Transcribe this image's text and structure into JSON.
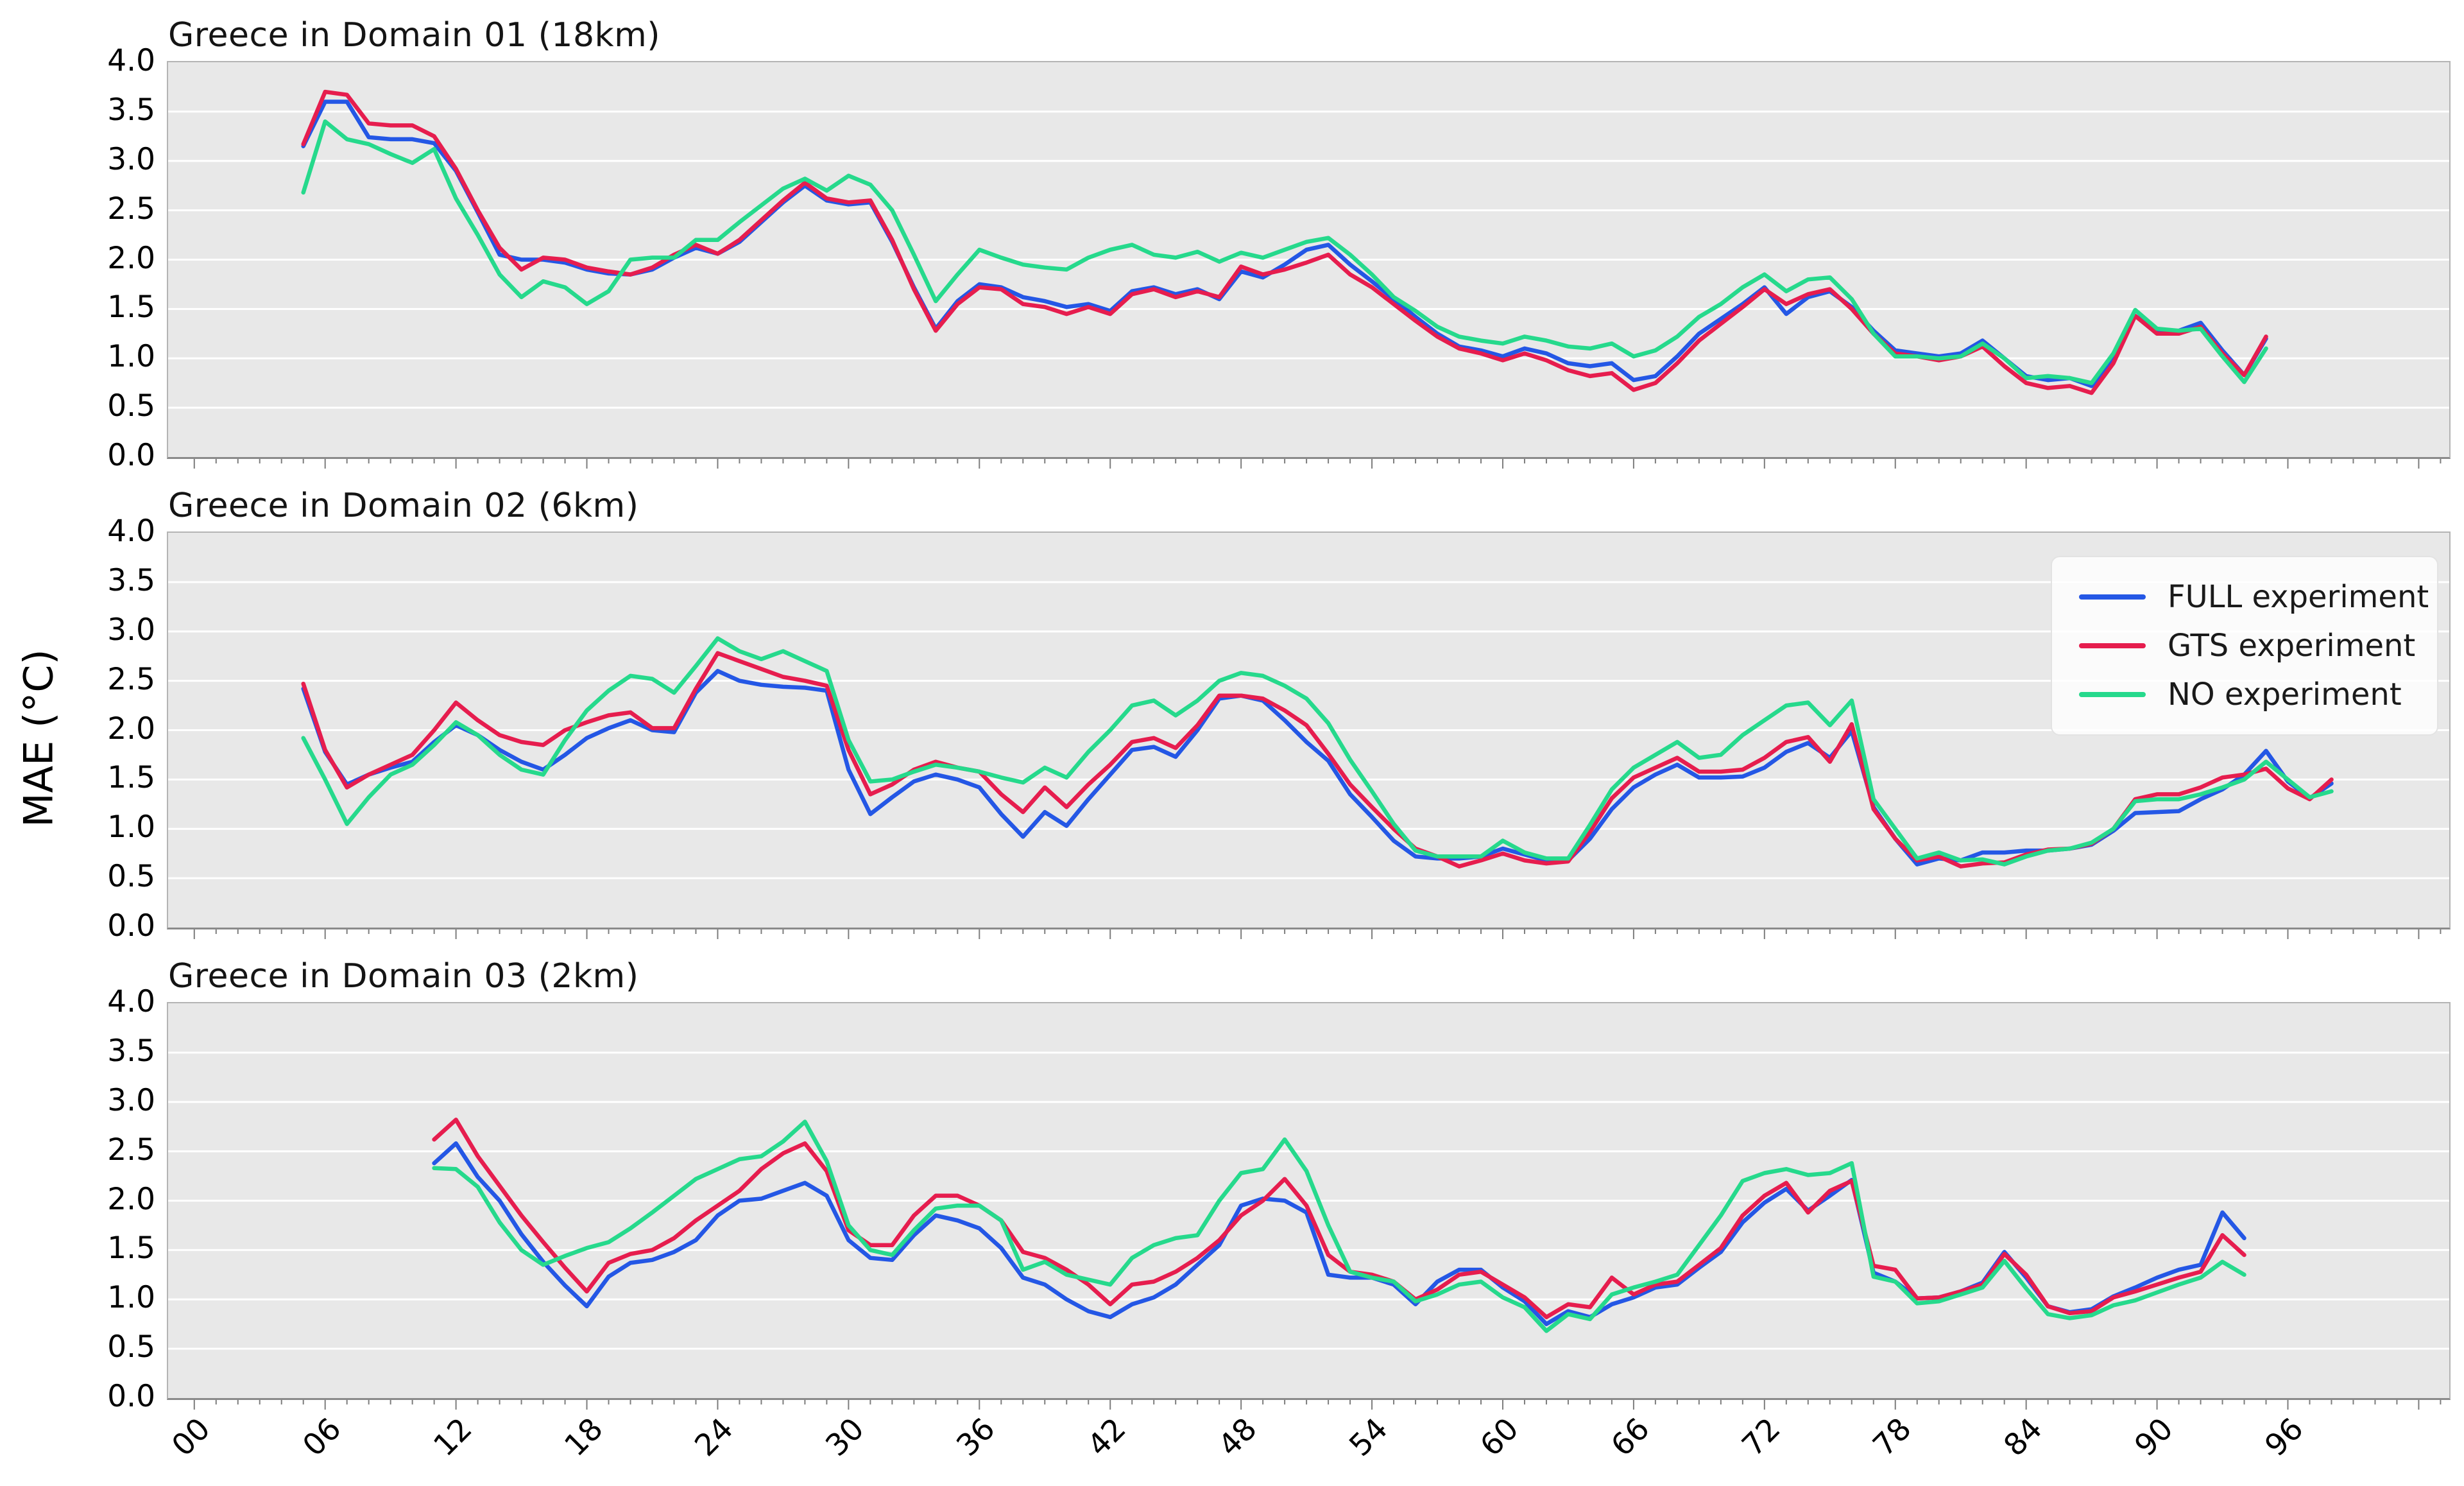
{
  "figure": {
    "ylabel": "MAE (°C)",
    "background": "#ffffff",
    "panel_background": "#e8e8e8",
    "gridline_color": "#ffffff"
  },
  "legend": {
    "entries": [
      {
        "label": "FULL experiment",
        "color": "#2457e5"
      },
      {
        "label": "GTS experiment",
        "color": "#e61d4e"
      },
      {
        "label": "NO experiment",
        "color": "#26d98c"
      }
    ]
  },
  "axes": {
    "ylim": [
      0,
      4
    ],
    "yticks": [
      "4.0",
      "3.5",
      "3.0",
      "2.5",
      "2.0",
      "1.5",
      "1.0",
      "0.5",
      "0.0"
    ],
    "xtick_labels": [
      "00",
      "06",
      "12",
      "18",
      "24",
      "30",
      "36",
      "42",
      "48",
      "54",
      "60",
      "66",
      "72",
      "78",
      "84",
      "90",
      "96"
    ],
    "xtick_hours": [
      0,
      6,
      12,
      18,
      24,
      30,
      36,
      42,
      48,
      54,
      60,
      66,
      72,
      78,
      84,
      90,
      96
    ],
    "xlim": [
      -1.2,
      103.4
    ]
  },
  "chart_data": [
    {
      "type": "line",
      "title": "Greece in Domain 01 (18km)",
      "xlabel": "",
      "ylabel": "MAE (°C)",
      "ylim": [
        0,
        4
      ],
      "grid": true,
      "start_hour": 5,
      "series": [
        {
          "name": "FULL experiment",
          "color": "#2457e5",
          "values": [
            3.15,
            3.6,
            3.6,
            3.24,
            3.22,
            3.22,
            3.18,
            2.9,
            2.48,
            2.05,
            2.0,
            2.0,
            1.97,
            1.9,
            1.86,
            1.85,
            1.9,
            2.02,
            2.12,
            2.06,
            2.18,
            2.38,
            2.58,
            2.75,
            2.6,
            2.56,
            2.58,
            2.18,
            1.72,
            1.3,
            1.58,
            1.75,
            1.72,
            1.62,
            1.58,
            1.52,
            1.55,
            1.48,
            1.68,
            1.72,
            1.65,
            1.7,
            1.6,
            1.88,
            1.82,
            1.95,
            2.1,
            2.15,
            1.95,
            1.78,
            1.6,
            1.42,
            1.25,
            1.12,
            1.08,
            1.02,
            1.1,
            1.05,
            0.95,
            0.92,
            0.95,
            0.78,
            0.82,
            1.02,
            1.25,
            1.4,
            1.55,
            1.72,
            1.45,
            1.62,
            1.68,
            1.52,
            1.28,
            1.08,
            1.05,
            1.02,
            1.05,
            1.18,
            1.0,
            0.82,
            0.78,
            0.8,
            0.72,
            1.0,
            1.43,
            1.28,
            1.28,
            1.36,
            1.08,
            0.83,
            1.2
          ]
        },
        {
          "name": "GTS experiment",
          "color": "#e61d4e",
          "values": [
            3.17,
            3.7,
            3.67,
            3.38,
            3.36,
            3.36,
            3.25,
            2.92,
            2.5,
            2.12,
            1.9,
            2.02,
            2.0,
            1.92,
            1.88,
            1.85,
            1.92,
            2.05,
            2.15,
            2.06,
            2.2,
            2.4,
            2.6,
            2.78,
            2.62,
            2.58,
            2.6,
            2.2,
            1.7,
            1.28,
            1.55,
            1.72,
            1.7,
            1.55,
            1.52,
            1.45,
            1.52,
            1.45,
            1.65,
            1.7,
            1.62,
            1.68,
            1.62,
            1.93,
            1.85,
            1.9,
            1.97,
            2.05,
            1.85,
            1.72,
            1.55,
            1.38,
            1.22,
            1.1,
            1.05,
            0.98,
            1.05,
            0.98,
            0.88,
            0.82,
            0.85,
            0.68,
            0.75,
            0.95,
            1.18,
            1.35,
            1.52,
            1.7,
            1.55,
            1.65,
            1.7,
            1.5,
            1.25,
            1.05,
            1.02,
            0.98,
            1.02,
            1.12,
            0.92,
            0.75,
            0.7,
            0.72,
            0.65,
            0.95,
            1.43,
            1.25,
            1.25,
            1.32,
            1.05,
            0.83,
            1.22
          ]
        },
        {
          "name": "NO experiment",
          "color": "#26d98c",
          "values": [
            2.68,
            3.4,
            3.22,
            3.17,
            3.07,
            2.98,
            3.12,
            2.62,
            2.25,
            1.85,
            1.62,
            1.78,
            1.72,
            1.55,
            1.68,
            2.0,
            2.02,
            2.02,
            2.2,
            2.2,
            2.38,
            2.55,
            2.72,
            2.82,
            2.7,
            2.85,
            2.76,
            2.5,
            2.05,
            1.58,
            1.85,
            2.1,
            2.02,
            1.95,
            1.92,
            1.9,
            2.02,
            2.1,
            2.15,
            2.05,
            2.02,
            2.08,
            1.98,
            2.07,
            2.02,
            2.1,
            2.18,
            2.22,
            2.05,
            1.85,
            1.62,
            1.48,
            1.32,
            1.22,
            1.18,
            1.15,
            1.22,
            1.18,
            1.12,
            1.1,
            1.15,
            1.02,
            1.08,
            1.22,
            1.42,
            1.55,
            1.72,
            1.85,
            1.68,
            1.8,
            1.82,
            1.6,
            1.25,
            1.02,
            1.02,
            1.0,
            1.02,
            1.15,
            1.0,
            0.8,
            0.82,
            0.8,
            0.75,
            1.05,
            1.49,
            1.3,
            1.28,
            1.3,
            1.02,
            0.76,
            1.1
          ]
        }
      ]
    },
    {
      "type": "line",
      "title": "Greece in Domain 02 (6km)",
      "xlabel": "",
      "ylabel": "MAE (°C)",
      "ylim": [
        0,
        4
      ],
      "grid": true,
      "start_hour": 5,
      "series": [
        {
          "name": "FULL experiment",
          "color": "#2457e5",
          "values": [
            2.42,
            1.78,
            1.45,
            1.55,
            1.62,
            1.68,
            1.88,
            2.05,
            1.95,
            1.8,
            1.68,
            1.6,
            1.75,
            1.92,
            2.02,
            2.1,
            2.0,
            1.98,
            2.38,
            2.6,
            2.5,
            2.46,
            2.44,
            2.43,
            2.4,
            1.6,
            1.15,
            1.32,
            1.48,
            1.55,
            1.5,
            1.42,
            1.15,
            0.92,
            1.17,
            1.03,
            1.3,
            1.55,
            1.8,
            1.83,
            1.73,
            2.0,
            2.32,
            2.35,
            2.3,
            2.1,
            1.88,
            1.69,
            1.35,
            1.12,
            0.88,
            0.72,
            0.7,
            0.7,
            0.72,
            0.8,
            0.74,
            0.68,
            0.68,
            0.9,
            1.2,
            1.42,
            1.55,
            1.65,
            1.52,
            1.52,
            1.53,
            1.62,
            1.78,
            1.87,
            1.72,
            1.99,
            1.22,
            0.9,
            0.64,
            0.7,
            0.68,
            0.76,
            0.76,
            0.78,
            0.78,
            0.8,
            0.84,
            0.98,
            1.16,
            1.17,
            1.18,
            1.3,
            1.4,
            1.55,
            1.79,
            1.48,
            1.31,
            1.46
          ]
        },
        {
          "name": "GTS experiment",
          "color": "#e61d4e",
          "values": [
            2.47,
            1.8,
            1.42,
            1.55,
            1.65,
            1.75,
            2.0,
            2.28,
            2.1,
            1.95,
            1.88,
            1.85,
            2.0,
            2.08,
            2.15,
            2.18,
            2.02,
            2.02,
            2.42,
            2.78,
            2.7,
            2.62,
            2.54,
            2.5,
            2.45,
            1.8,
            1.35,
            1.45,
            1.6,
            1.68,
            1.62,
            1.58,
            1.35,
            1.17,
            1.42,
            1.22,
            1.45,
            1.65,
            1.88,
            1.92,
            1.82,
            2.05,
            2.35,
            2.35,
            2.32,
            2.2,
            2.05,
            1.76,
            1.45,
            1.22,
            1.0,
            0.8,
            0.72,
            0.62,
            0.68,
            0.75,
            0.68,
            0.65,
            0.67,
            0.97,
            1.31,
            1.52,
            1.62,
            1.72,
            1.58,
            1.58,
            1.6,
            1.72,
            1.88,
            1.93,
            1.68,
            2.06,
            1.2,
            0.9,
            0.68,
            0.72,
            0.62,
            0.65,
            0.66,
            0.74,
            0.79,
            0.8,
            0.85,
            1.0,
            1.3,
            1.35,
            1.35,
            1.42,
            1.52,
            1.55,
            1.61,
            1.41,
            1.3,
            1.5
          ]
        },
        {
          "name": "NO experiment",
          "color": "#26d98c",
          "values": [
            1.92,
            1.5,
            1.05,
            1.32,
            1.55,
            1.65,
            1.85,
            2.08,
            1.95,
            1.75,
            1.6,
            1.55,
            1.9,
            2.2,
            2.4,
            2.55,
            2.52,
            2.38,
            2.65,
            2.93,
            2.8,
            2.72,
            2.8,
            2.7,
            2.6,
            1.9,
            1.48,
            1.5,
            1.58,
            1.65,
            1.62,
            1.58,
            1.52,
            1.47,
            1.62,
            1.52,
            1.78,
            2.0,
            2.25,
            2.3,
            2.15,
            2.3,
            2.5,
            2.58,
            2.55,
            2.45,
            2.32,
            2.07,
            1.7,
            1.38,
            1.05,
            0.78,
            0.72,
            0.72,
            0.72,
            0.88,
            0.76,
            0.7,
            0.7,
            1.04,
            1.4,
            1.62,
            1.75,
            1.88,
            1.72,
            1.75,
            1.95,
            2.1,
            2.25,
            2.28,
            2.05,
            2.3,
            1.3,
            1.0,
            0.7,
            0.76,
            0.68,
            0.69,
            0.64,
            0.72,
            0.78,
            0.8,
            0.86,
            1.0,
            1.28,
            1.3,
            1.3,
            1.35,
            1.42,
            1.5,
            1.68,
            1.5,
            1.32,
            1.38
          ]
        }
      ]
    },
    {
      "type": "line",
      "title": "Greece in Domain 03 (2km)",
      "xlabel": "",
      "ylabel": "MAE (°C)",
      "ylim": [
        0,
        4
      ],
      "grid": true,
      "start_hour": 11,
      "series": [
        {
          "name": "FULL experiment",
          "color": "#2457e5",
          "values": [
            2.38,
            2.58,
            2.24,
            2.0,
            1.66,
            1.38,
            1.14,
            0.93,
            1.23,
            1.37,
            1.4,
            1.48,
            1.6,
            1.85,
            2.0,
            2.02,
            2.1,
            2.18,
            2.05,
            1.6,
            1.42,
            1.4,
            1.65,
            1.85,
            1.8,
            1.72,
            1.52,
            1.22,
            1.15,
            1.0,
            0.88,
            0.82,
            0.95,
            1.02,
            1.15,
            1.35,
            1.55,
            1.95,
            2.02,
            2.0,
            1.88,
            1.25,
            1.22,
            1.22,
            1.15,
            0.95,
            1.18,
            1.3,
            1.3,
            1.12,
            0.98,
            0.75,
            0.88,
            0.82,
            0.95,
            1.02,
            1.12,
            1.15,
            1.32,
            1.48,
            1.78,
            1.98,
            2.12,
            1.9,
            2.05,
            2.21,
            1.27,
            1.18,
            1.01,
            1.02,
            1.08,
            1.17,
            1.48,
            1.22,
            0.93,
            0.87,
            0.9,
            1.03,
            1.12,
            1.22,
            1.3,
            1.35,
            1.88,
            1.62
          ]
        },
        {
          "name": "GTS experiment",
          "color": "#e61d4e",
          "values": [
            2.62,
            2.82,
            2.45,
            2.15,
            1.85,
            1.58,
            1.32,
            1.08,
            1.37,
            1.46,
            1.5,
            1.62,
            1.8,
            1.95,
            2.1,
            2.32,
            2.48,
            2.58,
            2.3,
            1.7,
            1.55,
            1.55,
            1.85,
            2.05,
            2.05,
            1.95,
            1.8,
            1.48,
            1.42,
            1.3,
            1.15,
            0.95,
            1.15,
            1.18,
            1.28,
            1.42,
            1.6,
            1.85,
            2.0,
            2.22,
            1.95,
            1.45,
            1.28,
            1.25,
            1.18,
            1.0,
            1.1,
            1.25,
            1.28,
            1.15,
            1.02,
            0.82,
            0.95,
            0.92,
            1.22,
            1.05,
            1.15,
            1.18,
            1.35,
            1.52,
            1.85,
            2.05,
            2.18,
            1.88,
            2.1,
            2.2,
            1.34,
            1.3,
            1.01,
            1.02,
            1.08,
            1.15,
            1.46,
            1.25,
            0.93,
            0.86,
            0.88,
            1.02,
            1.08,
            1.15,
            1.22,
            1.28,
            1.65,
            1.45
          ]
        },
        {
          "name": "NO experiment",
          "color": "#26d98c",
          "values": [
            2.33,
            2.32,
            2.14,
            1.78,
            1.5,
            1.35,
            1.44,
            1.52,
            1.58,
            1.72,
            1.88,
            2.05,
            2.22,
            2.32,
            2.42,
            2.45,
            2.6,
            2.8,
            2.4,
            1.75,
            1.5,
            1.45,
            1.7,
            1.92,
            1.95,
            1.95,
            1.8,
            1.3,
            1.38,
            1.25,
            1.2,
            1.15,
            1.42,
            1.55,
            1.62,
            1.65,
            2.0,
            2.28,
            2.32,
            2.62,
            2.3,
            1.75,
            1.28,
            1.22,
            1.18,
            0.98,
            1.05,
            1.15,
            1.18,
            1.02,
            0.92,
            0.68,
            0.85,
            0.8,
            1.05,
            1.12,
            1.18,
            1.25,
            1.55,
            1.85,
            2.2,
            2.28,
            2.32,
            2.26,
            2.28,
            2.38,
            1.23,
            1.18,
            0.96,
            0.98,
            1.05,
            1.12,
            1.39,
            1.11,
            0.85,
            0.81,
            0.84,
            0.94,
            0.99,
            1.07,
            1.15,
            1.22,
            1.38,
            1.25
          ]
        }
      ]
    }
  ]
}
